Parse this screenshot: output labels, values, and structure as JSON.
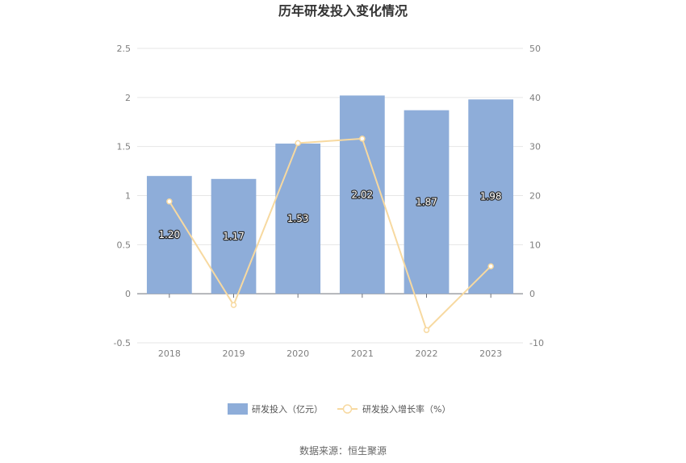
{
  "chart_data": {
    "type": "bar",
    "title": "历年研发投入变化情况",
    "categories": [
      "2018",
      "2019",
      "2020",
      "2021",
      "2022",
      "2023"
    ],
    "series": [
      {
        "name": "研发投入（亿元）",
        "type": "bar",
        "axis": "left",
        "values": [
          1.2,
          1.17,
          1.53,
          2.02,
          1.87,
          1.98
        ],
        "labels": [
          "1.20",
          "1.17",
          "1.53",
          "2.02",
          "1.87",
          "1.98"
        ],
        "color": "#8eadd9"
      },
      {
        "name": "研发投入增长率（%）",
        "type": "line",
        "axis": "right",
        "values": [
          18.8,
          -2.3,
          30.7,
          31.6,
          -7.4,
          5.6
        ],
        "color": "#f7d9a0"
      }
    ],
    "y_left": {
      "min": -0.5,
      "max": 2.5,
      "ticks": [
        "-0.5",
        "0",
        "0.5",
        "1",
        "1.5",
        "2",
        "2.5"
      ]
    },
    "y_right": {
      "min": -10,
      "max": 50,
      "ticks": [
        "-10",
        "0",
        "10",
        "20",
        "30",
        "40",
        "50"
      ]
    },
    "grid": true,
    "legend": "bottom-center"
  },
  "footer": {
    "source": "数据来源：恒生聚源"
  }
}
